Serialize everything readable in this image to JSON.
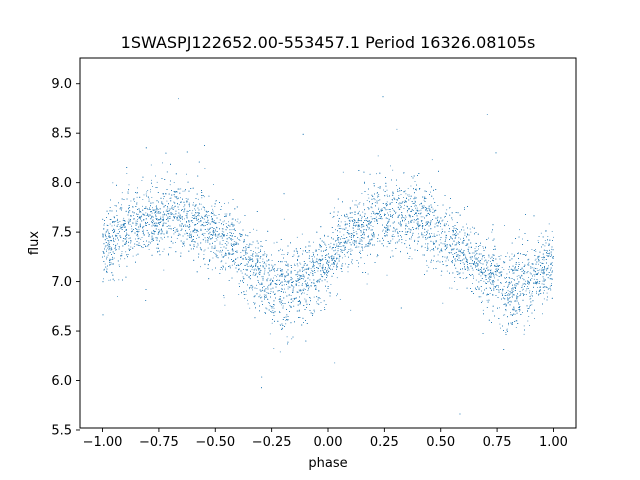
{
  "chart_data": {
    "type": "scatter",
    "title": "1SWASPJ122652.00-553457.1 Period 16326.08105s",
    "xlabel": "phase",
    "ylabel": "flux",
    "xlim": [
      -1.1,
      1.1
    ],
    "ylim": [
      5.52,
      9.26
    ],
    "grid": false,
    "legend": "none",
    "xticks": [
      -1.0,
      -0.75,
      -0.5,
      -0.25,
      0.0,
      0.25,
      0.5,
      0.75,
      1.0
    ],
    "xtick_labels": [
      "−1.00",
      "−0.75",
      "−0.50",
      "−0.25",
      "0.00",
      "0.25",
      "0.50",
      "0.75",
      "1.00"
    ],
    "yticks": [
      5.5,
      6.0,
      6.5,
      7.0,
      7.5,
      8.0,
      8.5,
      9.0
    ],
    "ytick_labels": [
      "5.5",
      "6.0",
      "6.5",
      "7.0",
      "7.5",
      "8.0",
      "8.5",
      "9.0"
    ],
    "point_color": "#1f77b4",
    "series": [
      {
        "phase": [
          -1.0,
          -0.95,
          -0.9,
          -0.85,
          -0.8,
          -0.75,
          -0.7,
          -0.65,
          -0.6,
          -0.55,
          -0.5,
          -0.45,
          -0.4,
          -0.35,
          -0.3,
          -0.25,
          -0.2,
          -0.15,
          -0.1,
          -0.05,
          0.0,
          0.05,
          0.1,
          0.15,
          0.2,
          0.25,
          0.3,
          0.35,
          0.4,
          0.45,
          0.5,
          0.55,
          0.6,
          0.65,
          0.7,
          0.75,
          0.8,
          0.85,
          0.9,
          0.95,
          1.0
        ],
        "mean_flux": [
          7.35,
          7.42,
          7.5,
          7.58,
          7.63,
          7.66,
          7.68,
          7.67,
          7.63,
          7.57,
          7.48,
          7.4,
          7.3,
          7.2,
          7.08,
          6.98,
          6.93,
          6.92,
          6.98,
          7.1,
          7.22,
          7.35,
          7.45,
          7.55,
          7.62,
          7.66,
          7.68,
          7.67,
          7.63,
          7.57,
          7.48,
          7.4,
          7.3,
          7.2,
          7.08,
          6.98,
          6.93,
          6.92,
          6.98,
          7.1,
          7.22
        ],
        "scatter_sigma": [
          0.18,
          0.18,
          0.18,
          0.18,
          0.18,
          0.18,
          0.18,
          0.18,
          0.18,
          0.18,
          0.18,
          0.18,
          0.18,
          0.18,
          0.19,
          0.2,
          0.21,
          0.21,
          0.2,
          0.19,
          0.18,
          0.18,
          0.18,
          0.18,
          0.18,
          0.18,
          0.18,
          0.18,
          0.18,
          0.18,
          0.18,
          0.18,
          0.18,
          0.18,
          0.19,
          0.2,
          0.21,
          0.21,
          0.2,
          0.19,
          0.18
        ]
      }
    ]
  }
}
